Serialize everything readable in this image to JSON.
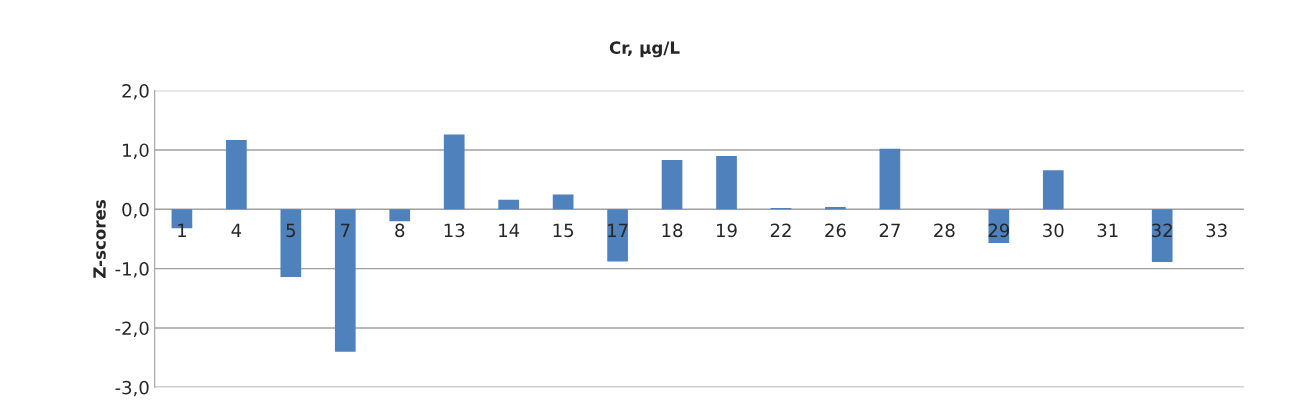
{
  "chart_data": {
    "type": "bar",
    "title": "Cr, µg/L",
    "ylabel": "Z-scores",
    "categories": [
      "1",
      "4",
      "5",
      "7",
      "8",
      "13",
      "14",
      "15",
      "17",
      "18",
      "19",
      "22",
      "26",
      "27",
      "28",
      "29",
      "30",
      "31",
      "32",
      "33"
    ],
    "values": [
      -0.32,
      1.17,
      -1.14,
      -2.4,
      -0.2,
      1.26,
      0.16,
      0.25,
      -0.88,
      0.83,
      0.9,
      0.02,
      0.04,
      1.02,
      null,
      -0.57,
      0.66,
      null,
      -0.89,
      null
    ],
    "color": "#4f81bd",
    "ylim": [
      -3,
      2
    ],
    "yticks": [
      {
        "value": -3,
        "label": "-3,0"
      },
      {
        "value": -2,
        "label": "-2,0"
      },
      {
        "value": -1,
        "label": "-1,0"
      },
      {
        "value": 0,
        "label": "0,0"
      },
      {
        "value": 1,
        "label": "1,0"
      },
      {
        "value": 2,
        "label": "2,0"
      }
    ],
    "grid": "y",
    "legend": false
  }
}
